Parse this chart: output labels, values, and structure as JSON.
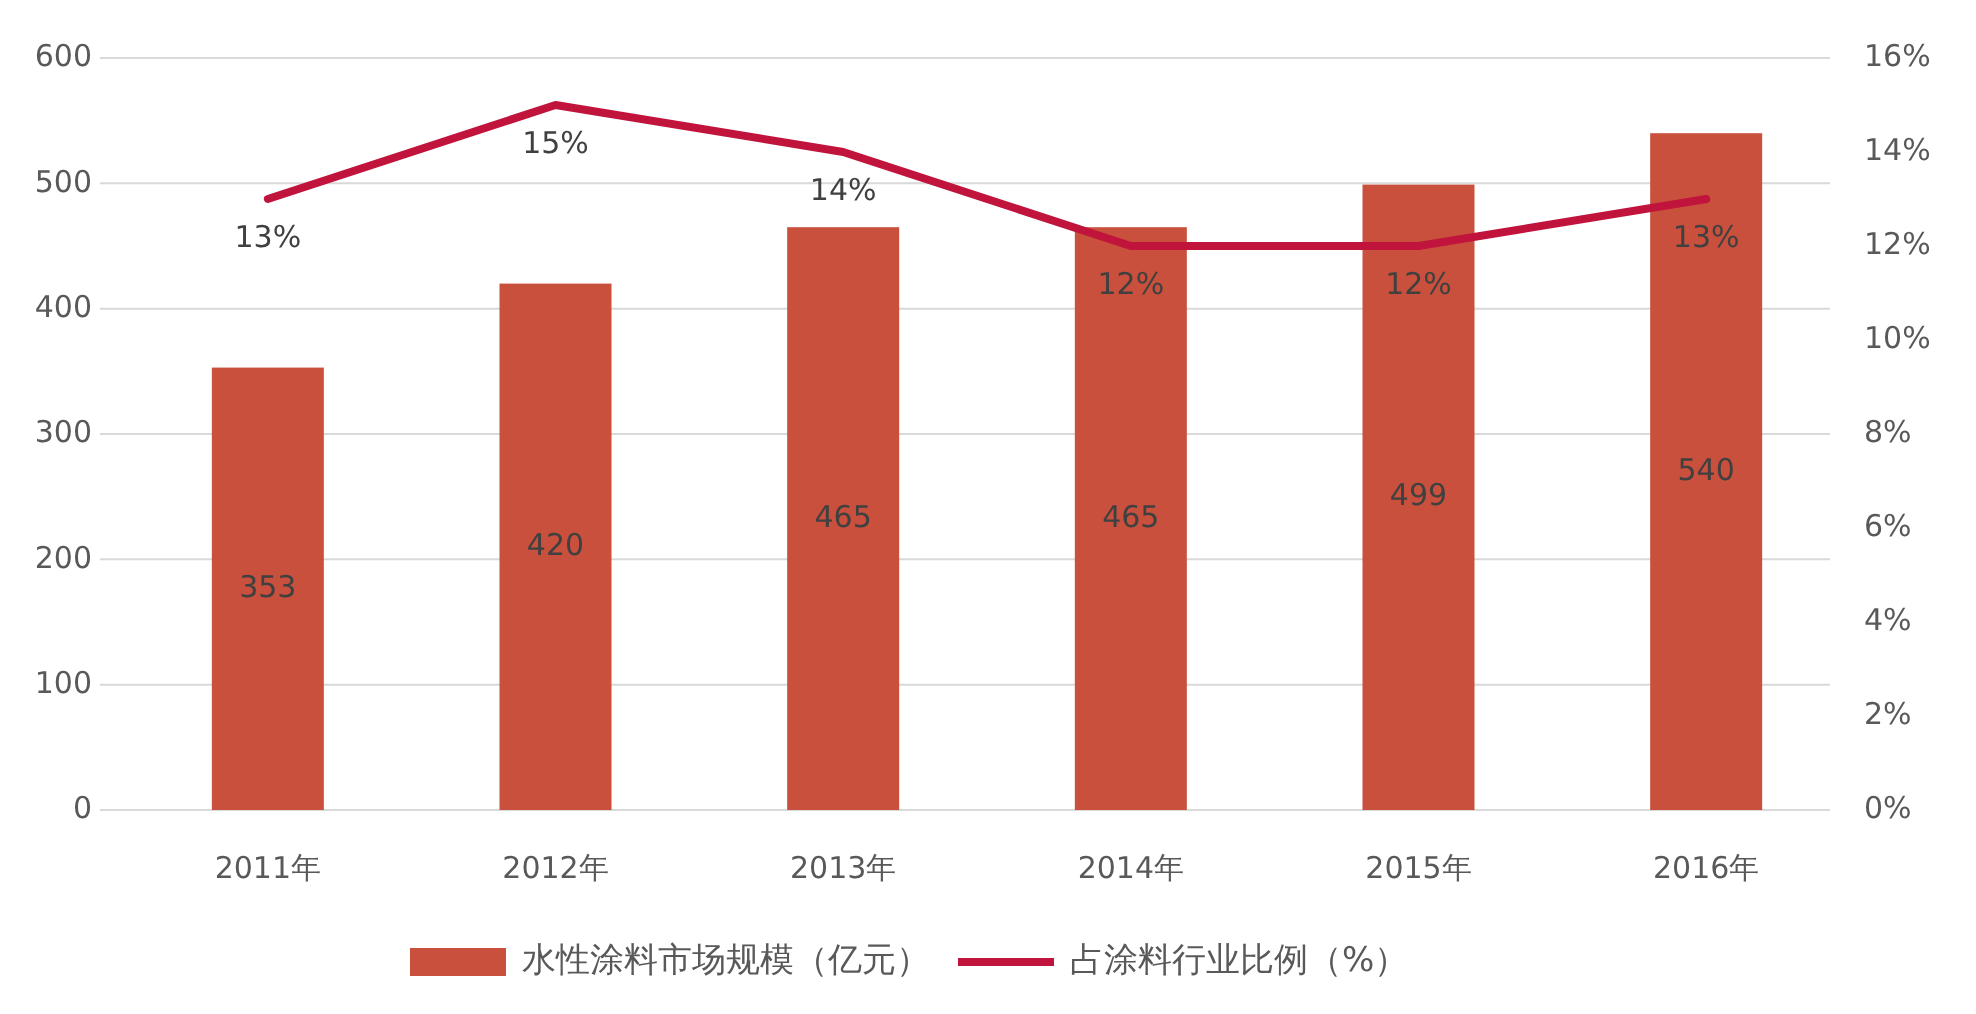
{
  "chart_data": {
    "type": "bar",
    "categories": [
      "2011年",
      "2012年",
      "2013年",
      "2014年",
      "2015年",
      "2016年"
    ],
    "series": [
      {
        "name": "水性涂料市场规模（亿元）",
        "color": "#c9503c",
        "values": [
          353,
          420,
          465,
          465,
          499,
          540
        ]
      },
      {
        "name": "占涂料行业比例（%）",
        "type": "line",
        "axis": "y2",
        "color": "#c0143c",
        "values": [
          13,
          15,
          14,
          12,
          12,
          13
        ],
        "value_labels": [
          "13%",
          "15%",
          "14%",
          "12%",
          "12%",
          "13%"
        ]
      }
    ],
    "ylim": [
      0,
      600
    ],
    "yticks": [
      0,
      100,
      200,
      300,
      400,
      500,
      600
    ],
    "y2lim": [
      0,
      16
    ],
    "y2ticks": [
      {
        "value": 0,
        "label": "0%"
      },
      {
        "value": 2,
        "label": "2%"
      },
      {
        "value": 4,
        "label": "4%"
      },
      {
        "value": 6,
        "label": "6%"
      },
      {
        "value": 8,
        "label": "8%"
      },
      {
        "value": 10,
        "label": "10%"
      },
      {
        "value": 12,
        "label": "12%"
      },
      {
        "value": 14,
        "label": "14%"
      },
      {
        "value": 16,
        "label": "16%"
      }
    ],
    "data_labels": true,
    "grid": "y",
    "legend": "bottom",
    "marker": "none"
  }
}
